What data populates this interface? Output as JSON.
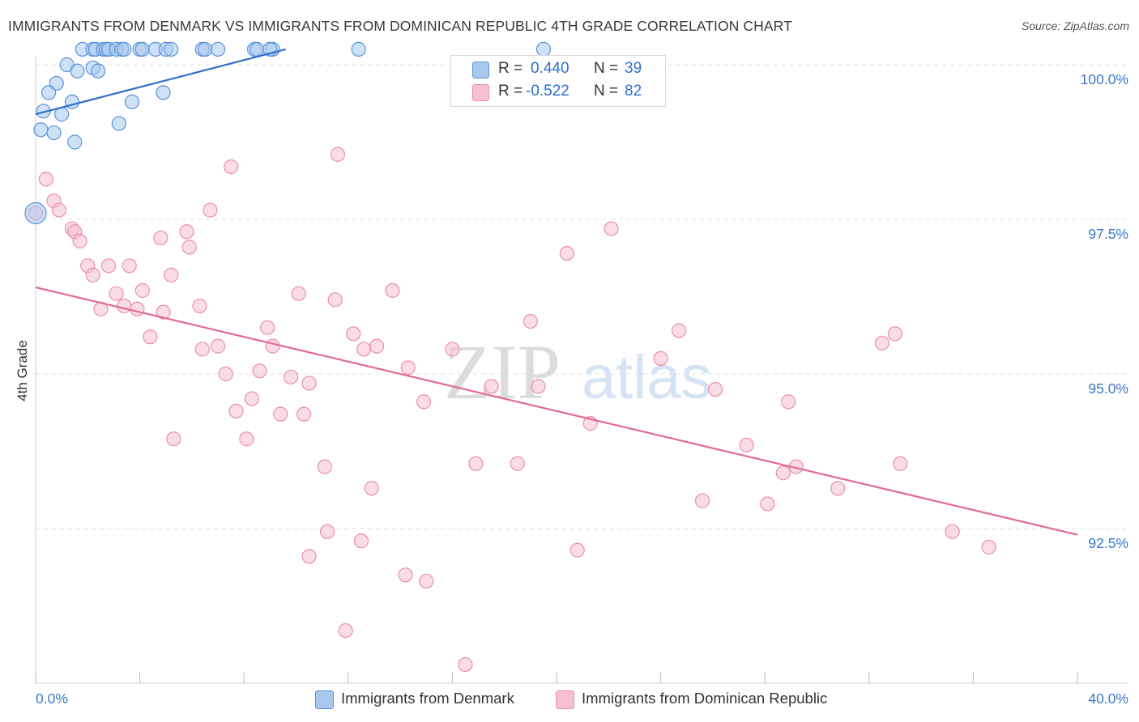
{
  "title": "IMMIGRANTS FROM DENMARK VS IMMIGRANTS FROM DOMINICAN REPUBLIC 4TH GRADE CORRELATION CHART",
  "source": "Source: ZipAtlas.com",
  "watermark": {
    "zip": "ZIP",
    "atlas": "atlas"
  },
  "colors": {
    "blue_fill": "#a8c8f0",
    "blue_stroke": "#5b93d8",
    "blue_line": "#2f6fcc",
    "pink_fill": "#f6bfd2",
    "pink_stroke": "#e98fb0",
    "pink_line": "#e06a98",
    "axis_value": "#3c78c8",
    "grid": "#e2e2e2"
  },
  "legend": {
    "blue": {
      "r_label": "R =",
      "r_value": "0.440",
      "n_label": "N =",
      "n_value": "39"
    },
    "pink": {
      "r_label": "R =",
      "r_value": "-0.522",
      "n_label": "N =",
      "n_value": "82"
    }
  },
  "bottom_legend": {
    "blue_label": "Immigrants from Denmark",
    "pink_label": "Immigrants from Dominican Republic"
  },
  "chart_data": {
    "type": "scatter",
    "title": "IMMIGRANTS FROM DENMARK VS IMMIGRANTS FROM DOMINICAN REPUBLIC 4TH GRADE CORRELATION CHART",
    "xlabel": "",
    "ylabel": "4th Grade",
    "xlim": [
      0,
      40
    ],
    "ylim": [
      90.25,
      100.25
    ],
    "x_tick_labels": [
      {
        "value": 0,
        "label": "0.0%"
      },
      {
        "value": 40,
        "label": "40.0%"
      }
    ],
    "x_minor_ticks": [
      4,
      8,
      12,
      16,
      20,
      24,
      28,
      32,
      36
    ],
    "y_ticks": [
      {
        "value": 100,
        "label": "100.0%"
      },
      {
        "value": 97.5,
        "label": "97.5%"
      },
      {
        "value": 95,
        "label": "95.0%"
      },
      {
        "value": 92.5,
        "label": "92.5%"
      }
    ],
    "grid": true,
    "legend_position": "top-center",
    "series": [
      {
        "name": "Immigrants from Denmark",
        "color": "blue",
        "R": 0.44,
        "N": 39,
        "trend": {
          "x": [
            0,
            9.6
          ],
          "y": [
            99.2,
            100.25
          ]
        },
        "points": [
          {
            "x": 1.8,
            "y": 100.25
          },
          {
            "x": 2.2,
            "y": 100.25
          },
          {
            "x": 2.3,
            "y": 100.25
          },
          {
            "x": 2.6,
            "y": 100.25
          },
          {
            "x": 2.7,
            "y": 100.25
          },
          {
            "x": 2.8,
            "y": 100.25
          },
          {
            "x": 3.1,
            "y": 100.25
          },
          {
            "x": 3.3,
            "y": 100.25
          },
          {
            "x": 3.4,
            "y": 100.25
          },
          {
            "x": 4.0,
            "y": 100.25
          },
          {
            "x": 4.1,
            "y": 100.25
          },
          {
            "x": 4.6,
            "y": 100.25
          },
          {
            "x": 5.0,
            "y": 100.25
          },
          {
            "x": 5.2,
            "y": 100.25
          },
          {
            "x": 6.4,
            "y": 100.25
          },
          {
            "x": 6.5,
            "y": 100.25
          },
          {
            "x": 7.0,
            "y": 100.25
          },
          {
            "x": 8.4,
            "y": 100.25
          },
          {
            "x": 8.5,
            "y": 100.25
          },
          {
            "x": 9.1,
            "y": 100.25
          },
          {
            "x": 9.0,
            "y": 100.25
          },
          {
            "x": 12.4,
            "y": 100.25
          },
          {
            "x": 19.5,
            "y": 100.25
          },
          {
            "x": 1.2,
            "y": 100.0
          },
          {
            "x": 1.6,
            "y": 99.9
          },
          {
            "x": 2.2,
            "y": 99.95
          },
          {
            "x": 2.4,
            "y": 99.9
          },
          {
            "x": 0.8,
            "y": 99.7
          },
          {
            "x": 0.5,
            "y": 99.55
          },
          {
            "x": 1.4,
            "y": 99.4
          },
          {
            "x": 3.7,
            "y": 99.4
          },
          {
            "x": 4.9,
            "y": 99.55
          },
          {
            "x": 0.3,
            "y": 99.25
          },
          {
            "x": 1.0,
            "y": 99.2
          },
          {
            "x": 3.2,
            "y": 99.05
          },
          {
            "x": 0.2,
            "y": 98.95
          },
          {
            "x": 0.7,
            "y": 98.9
          },
          {
            "x": 1.5,
            "y": 98.75
          },
          {
            "x": 0.0,
            "y": 97.6
          }
        ]
      },
      {
        "name": "Immigrants from Dominican Republic",
        "color": "pink",
        "R": -0.522,
        "N": 82,
        "trend": {
          "x": [
            0,
            40
          ],
          "y": [
            96.4,
            92.4
          ]
        },
        "points": [
          {
            "x": 0.4,
            "y": 98.15
          },
          {
            "x": 7.5,
            "y": 98.35
          },
          {
            "x": 11.6,
            "y": 98.55
          },
          {
            "x": 0.7,
            "y": 97.8
          },
          {
            "x": 0.9,
            "y": 97.65
          },
          {
            "x": 6.7,
            "y": 97.65
          },
          {
            "x": 1.4,
            "y": 97.35
          },
          {
            "x": 1.5,
            "y": 97.3
          },
          {
            "x": 5.8,
            "y": 97.3
          },
          {
            "x": 4.8,
            "y": 97.2
          },
          {
            "x": 1.7,
            "y": 97.15
          },
          {
            "x": 5.9,
            "y": 97.05
          },
          {
            "x": 22.1,
            "y": 97.35
          },
          {
            "x": 20.4,
            "y": 96.95
          },
          {
            "x": 2.0,
            "y": 96.75
          },
          {
            "x": 2.8,
            "y": 96.75
          },
          {
            "x": 3.6,
            "y": 96.75
          },
          {
            "x": 2.2,
            "y": 96.6
          },
          {
            "x": 5.2,
            "y": 96.6
          },
          {
            "x": 3.1,
            "y": 96.3
          },
          {
            "x": 4.1,
            "y": 96.35
          },
          {
            "x": 10.1,
            "y": 96.3
          },
          {
            "x": 13.7,
            "y": 96.35
          },
          {
            "x": 11.5,
            "y": 96.2
          },
          {
            "x": 2.5,
            "y": 96.05
          },
          {
            "x": 3.4,
            "y": 96.1
          },
          {
            "x": 3.9,
            "y": 96.05
          },
          {
            "x": 4.9,
            "y": 96.0
          },
          {
            "x": 6.3,
            "y": 96.1
          },
          {
            "x": 19.0,
            "y": 95.85
          },
          {
            "x": 8.9,
            "y": 95.75
          },
          {
            "x": 4.4,
            "y": 95.6
          },
          {
            "x": 12.2,
            "y": 95.65
          },
          {
            "x": 24.7,
            "y": 95.7
          },
          {
            "x": 33.0,
            "y": 95.65
          },
          {
            "x": 6.4,
            "y": 95.4
          },
          {
            "x": 7.0,
            "y": 95.45
          },
          {
            "x": 9.1,
            "y": 95.45
          },
          {
            "x": 13.1,
            "y": 95.45
          },
          {
            "x": 12.6,
            "y": 95.4
          },
          {
            "x": 16.0,
            "y": 95.4
          },
          {
            "x": 24.0,
            "y": 95.25
          },
          {
            "x": 32.5,
            "y": 95.5
          },
          {
            "x": 7.3,
            "y": 95.0
          },
          {
            "x": 8.6,
            "y": 95.05
          },
          {
            "x": 9.8,
            "y": 94.95
          },
          {
            "x": 14.3,
            "y": 95.1
          },
          {
            "x": 10.5,
            "y": 94.85
          },
          {
            "x": 17.5,
            "y": 94.8
          },
          {
            "x": 19.3,
            "y": 94.8
          },
          {
            "x": 26.1,
            "y": 94.75
          },
          {
            "x": 8.3,
            "y": 94.6
          },
          {
            "x": 14.9,
            "y": 94.55
          },
          {
            "x": 28.9,
            "y": 94.55
          },
          {
            "x": 7.7,
            "y": 94.4
          },
          {
            "x": 9.4,
            "y": 94.35
          },
          {
            "x": 10.3,
            "y": 94.35
          },
          {
            "x": 21.3,
            "y": 94.2
          },
          {
            "x": 5.3,
            "y": 93.95
          },
          {
            "x": 8.1,
            "y": 93.95
          },
          {
            "x": 27.3,
            "y": 93.85
          },
          {
            "x": 16.9,
            "y": 93.55
          },
          {
            "x": 18.5,
            "y": 93.55
          },
          {
            "x": 11.1,
            "y": 93.5
          },
          {
            "x": 29.2,
            "y": 93.5
          },
          {
            "x": 28.7,
            "y": 93.4
          },
          {
            "x": 33.2,
            "y": 93.55
          },
          {
            "x": 12.9,
            "y": 93.15
          },
          {
            "x": 30.8,
            "y": 93.15
          },
          {
            "x": 25.6,
            "y": 92.95
          },
          {
            "x": 28.1,
            "y": 92.9
          },
          {
            "x": 11.2,
            "y": 92.45
          },
          {
            "x": 12.5,
            "y": 92.3
          },
          {
            "x": 35.2,
            "y": 92.45
          },
          {
            "x": 36.6,
            "y": 92.2
          },
          {
            "x": 20.8,
            "y": 92.15
          },
          {
            "x": 10.5,
            "y": 92.05
          },
          {
            "x": 14.2,
            "y": 91.75
          },
          {
            "x": 15.0,
            "y": 91.65
          },
          {
            "x": 11.9,
            "y": 90.85
          },
          {
            "x": 16.5,
            "y": 90.3
          },
          {
            "x": 0.0,
            "y": 97.6
          }
        ]
      }
    ]
  }
}
